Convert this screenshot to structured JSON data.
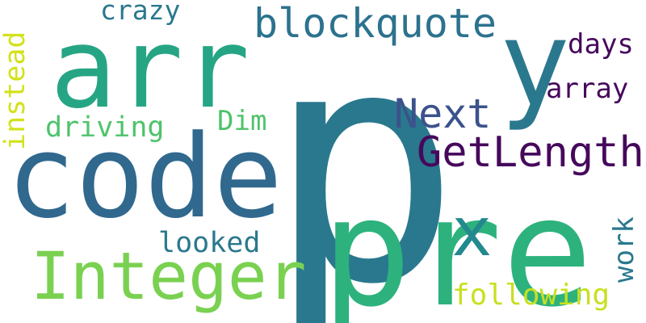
{
  "words": [
    {
      "text": "p",
      "color": "#2a788e"
    },
    {
      "text": "arr",
      "color": "#26a584"
    },
    {
      "text": "y",
      "color": "#2a788e"
    },
    {
      "text": "code",
      "color": "#31688e"
    },
    {
      "text": "pre",
      "color": "#2db27d"
    },
    {
      "text": "Integer",
      "color": "#7ad151"
    },
    {
      "text": "blockquote",
      "color": "#2c728e"
    },
    {
      "text": "GetLength",
      "color": "#46085c"
    },
    {
      "text": "Next",
      "color": "#3b528b"
    },
    {
      "text": "crazy",
      "color": "#2a788e"
    },
    {
      "text": "days",
      "color": "#46085c"
    },
    {
      "text": "array",
      "color": "#46085c"
    },
    {
      "text": "x",
      "color": "#23898e"
    },
    {
      "text": "instead",
      "color": "#d2e21b"
    },
    {
      "text": "driving",
      "color": "#4ec36b"
    },
    {
      "text": "Dim",
      "color": "#4ec36b"
    },
    {
      "text": "looked",
      "color": "#2a788e"
    },
    {
      "text": "work",
      "color": "#2a788e"
    },
    {
      "text": "following",
      "color": "#c8e020"
    }
  ]
}
